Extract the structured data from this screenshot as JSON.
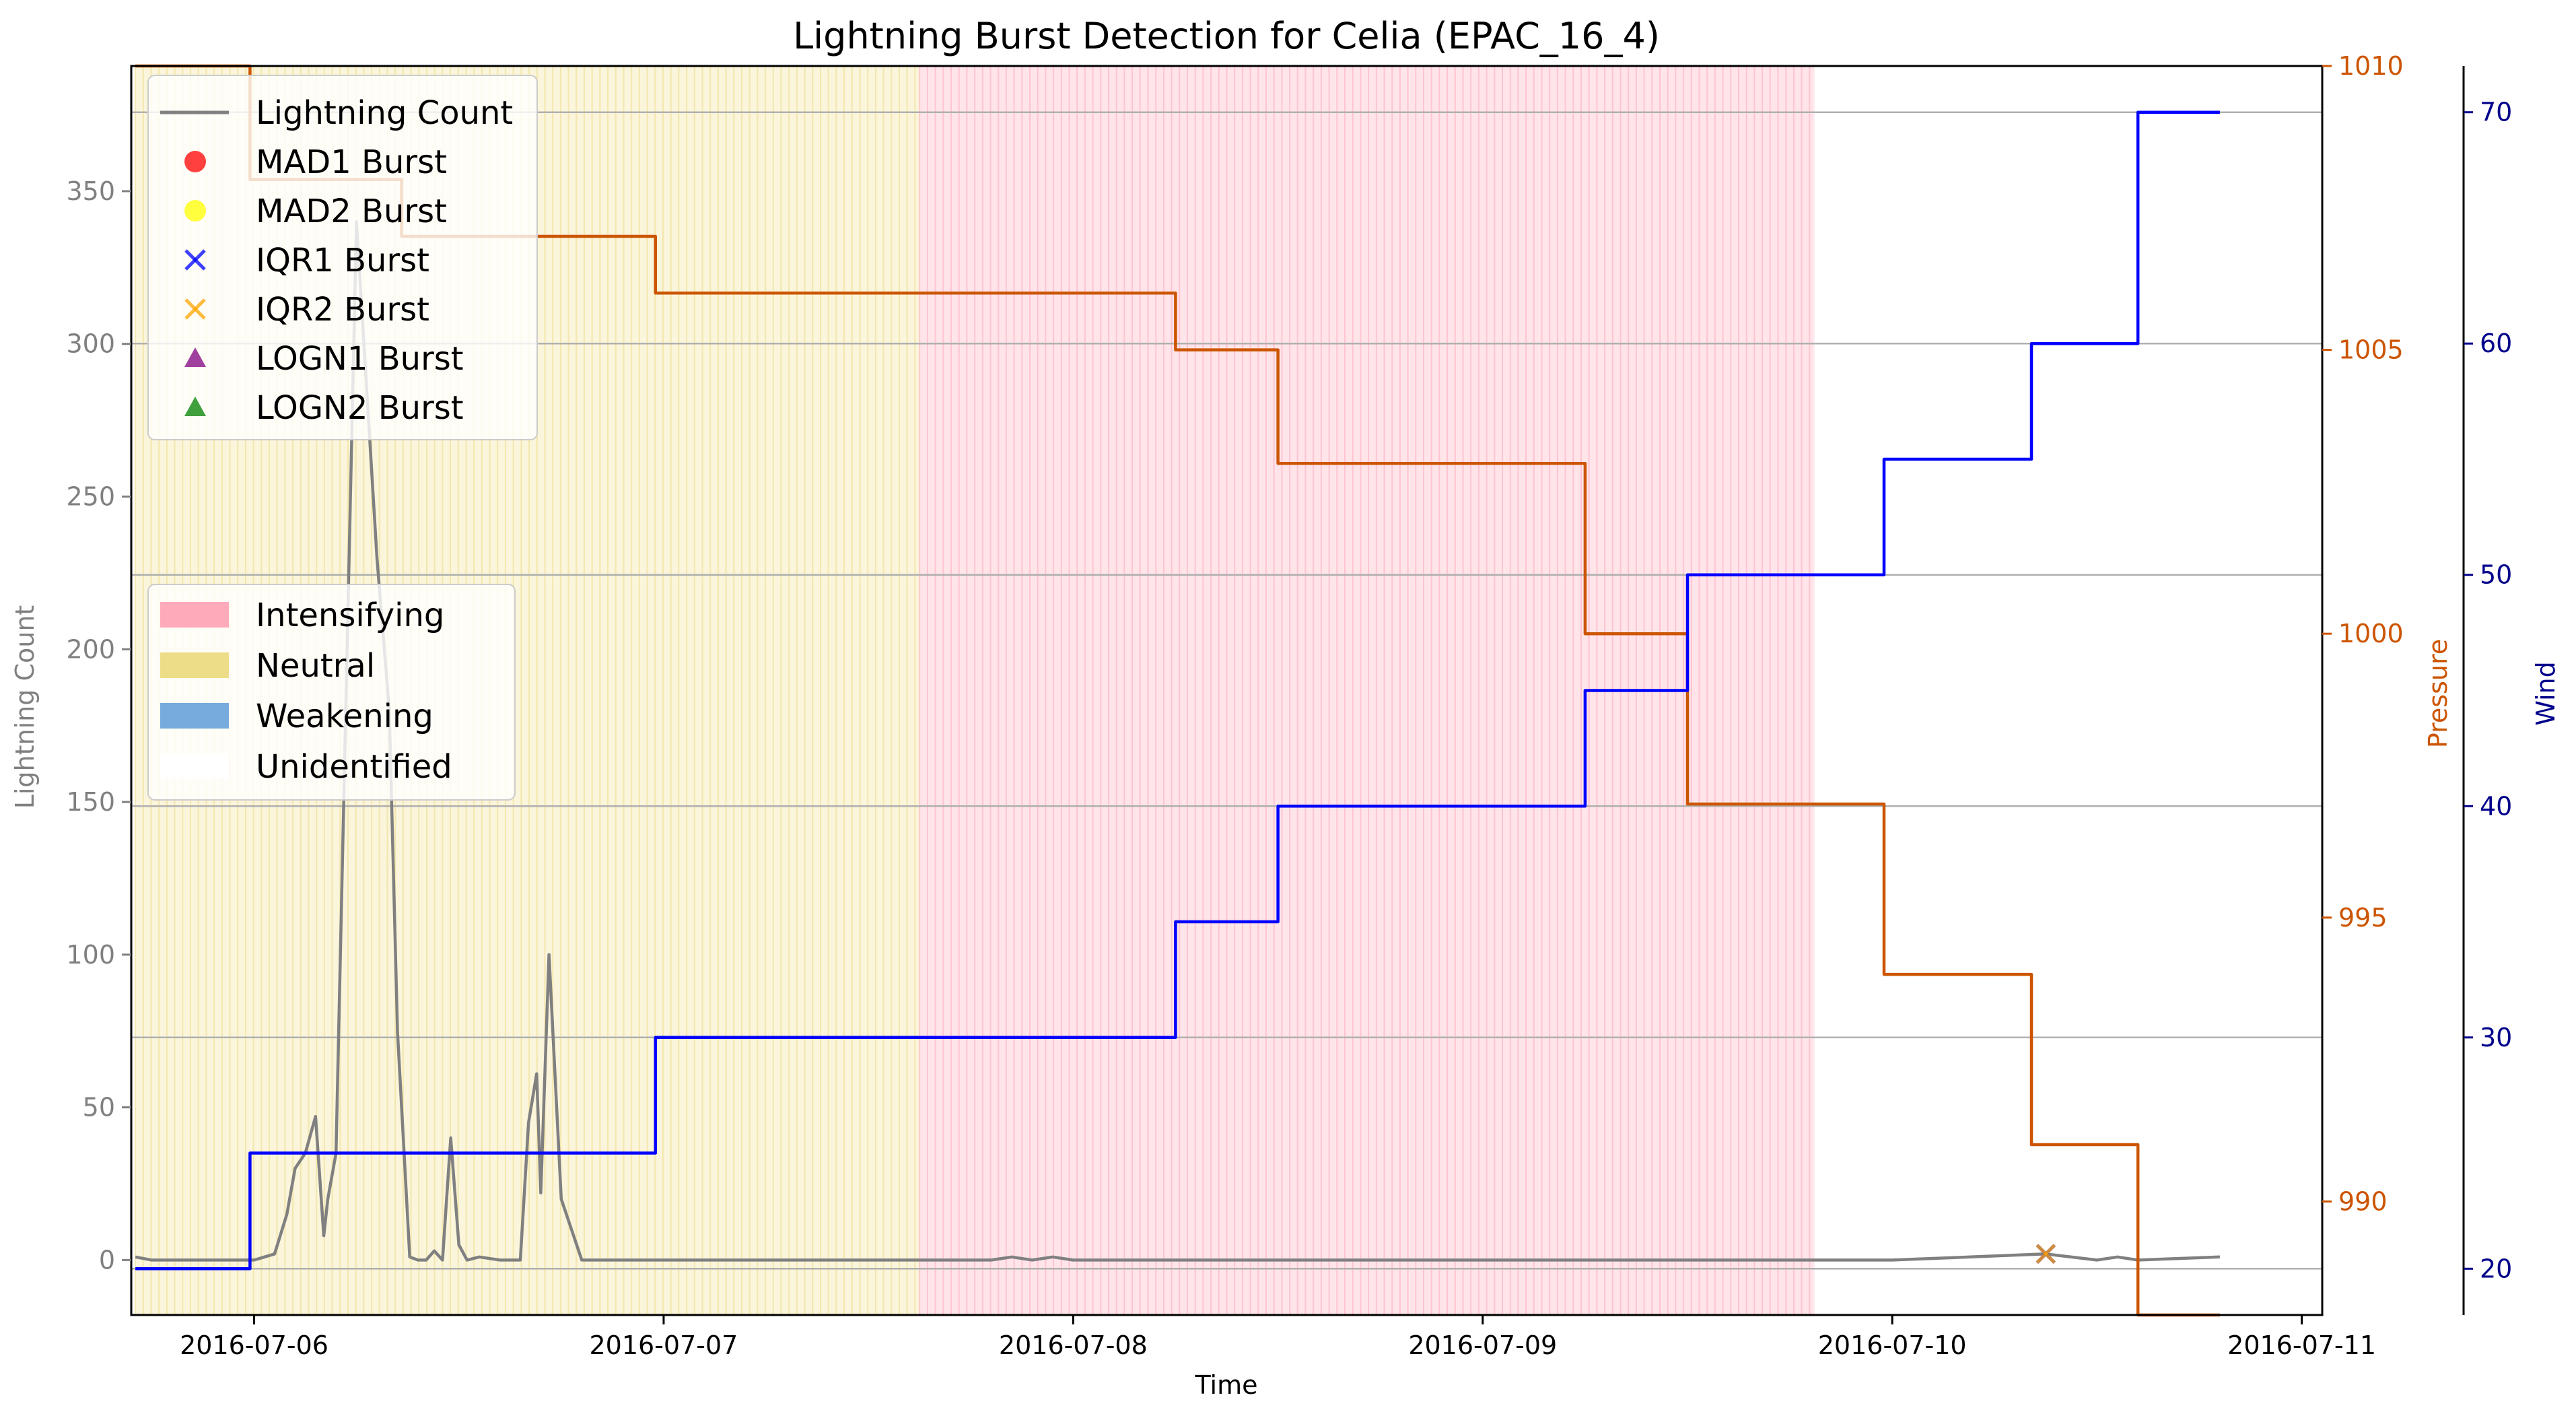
{
  "chart_data": {
    "type": "line",
    "title": "Lightning Burst Detection for Celia (EPAC_16_4)",
    "xlabel": "Time",
    "x_ticks": [
      "2016-07-06",
      "2016-07-07",
      "2016-07-08",
      "2016-07-09",
      "2016-07-10",
      "2016-07-11"
    ],
    "xlim": [
      -0.3,
      5.05
    ],
    "left_axis": {
      "label": "Lightning Count",
      "ylim": [
        -18,
        391
      ],
      "ticks": [
        0,
        50,
        100,
        150,
        200,
        250,
        300,
        350
      ],
      "color": "#808080"
    },
    "pressure_axis": {
      "label": "Pressure",
      "ylim": [
        988,
        1010
      ],
      "ticks": [
        990,
        995,
        1000,
        1005,
        1010
      ],
      "color": "#cc5500"
    },
    "wind_axis": {
      "label": "Wind",
      "ylim": [
        18,
        72
      ],
      "ticks": [
        20,
        30,
        40,
        50,
        60,
        70
      ],
      "color": "#00008b"
    },
    "grid": "horizontal lines at right-axis ticks",
    "legend_lines": {
      "location": "upper-left",
      "entries": [
        {
          "label": "Lightning Count",
          "marker": "line",
          "color": "#808080"
        },
        {
          "label": "MAD1 Burst",
          "marker": "circle",
          "color": "#ff0000"
        },
        {
          "label": "MAD2 Burst",
          "marker": "circle",
          "color": "#ffff00"
        },
        {
          "label": "IQR1 Burst",
          "marker": "x",
          "color": "#0000ff"
        },
        {
          "label": "IQR2 Burst",
          "marker": "x",
          "color": "#ffa500"
        },
        {
          "label": "LOGN1 Burst",
          "marker": "triangle",
          "color": "#800080"
        },
        {
          "label": "LOGN2 Burst",
          "marker": "triangle",
          "color": "#008000"
        }
      ]
    },
    "legend_phases": {
      "location": "center-left",
      "entries": [
        {
          "label": "Intensifying",
          "color": "#ffaabb"
        },
        {
          "label": "Neutral",
          "color": "#eedd88"
        },
        {
          "label": "Weakening",
          "color": "#77aadd"
        },
        {
          "label": "Unidentified",
          "color": "#ffffff"
        }
      ]
    },
    "phases": [
      {
        "name": "Neutral",
        "start": -0.29,
        "end": 1.625,
        "color": "#eedd88"
      },
      {
        "name": "Intensifying",
        "start": 1.625,
        "end": 3.81,
        "color": "#ffaabb"
      }
    ],
    "series": [
      {
        "name": "Lightning Count",
        "axis": "left",
        "color": "#808080",
        "x": [
          -0.29,
          -0.25,
          0.0,
          0.05,
          0.08,
          0.1,
          0.125,
          0.15,
          0.17,
          0.18,
          0.2,
          0.25,
          0.3,
          0.33,
          0.35,
          0.38,
          0.4,
          0.42,
          0.44,
          0.46,
          0.48,
          0.5,
          0.52,
          0.55,
          0.6,
          0.62,
          0.65,
          0.67,
          0.69,
          0.7,
          0.72,
          0.75,
          0.8,
          1.0,
          1.5,
          1.8,
          1.85,
          1.9,
          1.95,
          2.0,
          3.0,
          4.0,
          4.375,
          4.5,
          4.55,
          4.6,
          4.8
        ],
        "values": [
          1,
          0,
          0,
          2,
          15,
          30,
          35,
          47,
          8,
          20,
          35,
          340,
          230,
          180,
          75,
          1,
          0,
          0,
          3,
          0,
          40,
          5,
          0,
          1,
          0,
          0,
          0,
          45,
          61,
          22,
          100,
          20,
          0,
          0,
          0,
          0,
          1,
          0,
          1,
          0,
          0,
          0,
          2,
          0,
          1,
          0,
          1
        ]
      },
      {
        "name": "Pressure",
        "axis": "pressure",
        "color": "#cc5500",
        "x": [
          -0.29,
          -0.01,
          -0.01,
          0.36,
          0.36,
          0.98,
          0.98,
          1.35,
          1.35,
          2.25,
          2.25,
          2.5,
          2.5,
          3.25,
          3.25,
          3.5,
          3.5,
          3.98,
          3.98,
          4.34,
          4.34,
          4.6,
          4.6,
          4.8
        ],
        "values": [
          1010,
          1010,
          1008,
          1008,
          1007,
          1007,
          1006,
          1006,
          1006,
          1006,
          1005,
          1005,
          1003,
          1003,
          1000,
          1000,
          997,
          997,
          994,
          994,
          991,
          991,
          988,
          988
        ]
      },
      {
        "name": "Wind",
        "axis": "wind",
        "color": "#0000ff",
        "x": [
          -0.29,
          -0.01,
          -0.01,
          0.98,
          0.98,
          2.25,
          2.25,
          2.5,
          2.5,
          3.25,
          3.25,
          3.5,
          3.5,
          3.98,
          3.98,
          4.34,
          4.34,
          4.6,
          4.6,
          4.8
        ],
        "values": [
          20,
          20,
          25,
          25,
          30,
          30,
          35,
          35,
          40,
          40,
          45,
          45,
          50,
          50,
          55,
          55,
          60,
          60,
          70,
          70
        ]
      }
    ],
    "burst_markers": [
      {
        "name": "IQR1 Burst",
        "x": 4.375,
        "y": 2,
        "marker": "x",
        "color": "#0000ff"
      },
      {
        "name": "IQR2 Burst",
        "x": 4.375,
        "y": 2,
        "marker": "x",
        "color": "#ffa500"
      }
    ]
  }
}
